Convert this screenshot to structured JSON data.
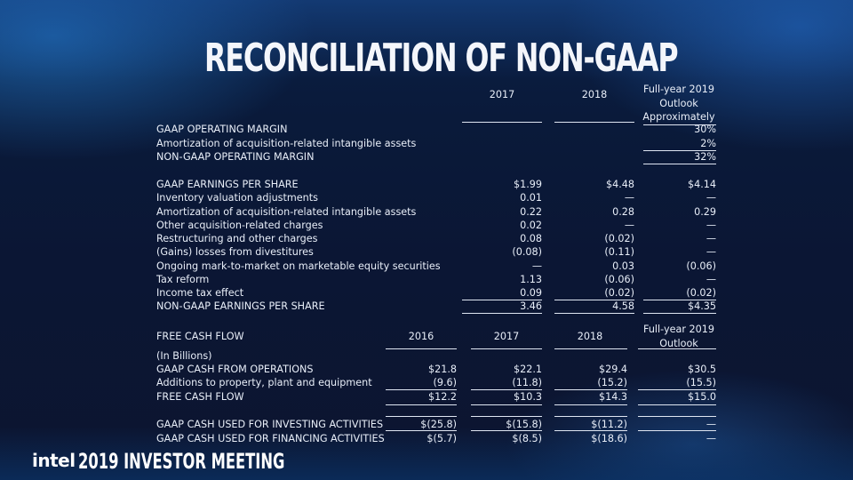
{
  "title": "RECONCILIATION OF NON-GAAP",
  "margin_table": {
    "col_2017": "2017",
    "col_2018": "2018",
    "outlook_line1": "Full-year 2019",
    "outlook_line2": "Outlook",
    "outlook_line3": "Approximately",
    "rows": [
      {
        "label": "GAAP OPERATING MARGIN",
        "v2017": "",
        "v2018": "",
        "v2019": "30%"
      },
      {
        "label": "Amortization of acquisition-related intangible assets",
        "v2017": "",
        "v2018": "",
        "v2019": "2%"
      },
      {
        "label": "NON-GAAP OPERATING MARGIN",
        "v2017": "",
        "v2018": "",
        "v2019": "32%"
      },
      {
        "label": "GAAP EARNINGS PER SHARE",
        "v2017": "$1.99",
        "v2018": "$4.48",
        "v2019": "$4.14"
      },
      {
        "label": "Inventory valuation adjustments",
        "v2017": "0.01",
        "v2018": "—",
        "v2019": "—"
      },
      {
        "label": "Amortization of acquisition-related intangible assets",
        "v2017": "0.22",
        "v2018": "0.28",
        "v2019": "0.29"
      },
      {
        "label": "Other acquisition-related charges",
        "v2017": "0.02",
        "v2018": "—",
        "v2019": "—"
      },
      {
        "label": "Restructuring and other charges",
        "v2017": "0.08",
        "v2018": "(0.02)",
        "v2019": "—"
      },
      {
        "label": "(Gains) losses from divestitures",
        "v2017": "(0.08)",
        "v2018": "(0.11)",
        "v2019": "—"
      },
      {
        "label": "Ongoing mark-to-market on marketable equity securities",
        "v2017": "—",
        "v2018": "0.03",
        "v2019": "(0.06)"
      },
      {
        "label": "Tax reform",
        "v2017": "1.13",
        "v2018": "(0.06)",
        "v2019": "—"
      },
      {
        "label": "Income tax effect",
        "v2017": "0.09",
        "v2018": "(0.02)",
        "v2019": "(0.02)"
      },
      {
        "label": "NON-GAAP EARNINGS PER SHARE",
        "v2017": "3.46",
        "v2018": "4.58",
        "v2019": "$4.35"
      }
    ]
  },
  "fcf_table": {
    "header_label": "FREE CASH FLOW",
    "col_2016": "2016",
    "col_2017": "2017",
    "col_2018": "2018",
    "outlook_line1": "Full-year 2019",
    "outlook_line2": "Outlook",
    "units_label": "(In Billions)",
    "rows": [
      {
        "label": "GAAP CASH FROM OPERATIONS",
        "v2016": "$21.8",
        "v2017": "$22.1",
        "v2018": "$29.4",
        "v2019": "$30.5"
      },
      {
        "label": "Additions to property, plant and equipment",
        "v2016": "(9.6)",
        "v2017": "(11.8)",
        "v2018": "(15.2)",
        "v2019": "(15.5)"
      },
      {
        "label": "FREE CASH FLOW",
        "v2016": "$12.2",
        "v2017": "$10.3",
        "v2018": "$14.3",
        "v2019": "$15.0"
      },
      {
        "label": "GAAP CASH USED FOR INVESTING ACTIVITIES",
        "v2016": "$(25.8)",
        "v2017": "$(15.8)",
        "v2018": "$(11.2)",
        "v2019": "—"
      },
      {
        "label": "GAAP CASH USED FOR FINANCING ACTIVITIES",
        "v2016": "$(5.7)",
        "v2017": "$(8.5)",
        "v2018": "$(18.6)",
        "v2019": "—"
      }
    ]
  },
  "footer": {
    "logo": "intel",
    "event": "2019 INVESTOR MEETING"
  }
}
